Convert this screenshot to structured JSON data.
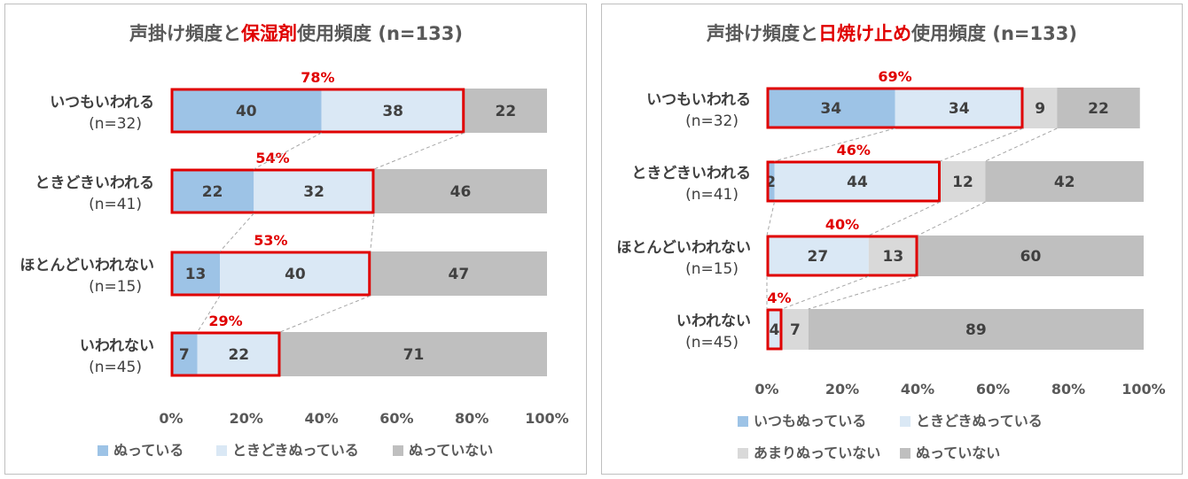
{
  "colors": {
    "always": "#9dc3e6",
    "sometimes": "#dae8f5",
    "rarely": "#d9d9d9",
    "not": "#bfbfbf",
    "highlight": "#e00000",
    "connector": "#a6a6a6"
  },
  "chart_data": [
    {
      "type": "bar",
      "orientation": "horizontal",
      "stacked": true,
      "title_parts": [
        "声掛け頻度と",
        "保湿剤",
        "使用頻度 (n=133)"
      ],
      "title_highlight_index": 1,
      "categories": [
        "いつもいわれる",
        "ときどきいわれる",
        "ほとんどいわれない",
        "いわれない"
      ],
      "category_n": [
        "(n=32)",
        "(n=41)",
        "(n=15)",
        "(n=45)"
      ],
      "series": [
        {
          "name": "ぬっている",
          "color_key": "always",
          "values": [
            40,
            22,
            13,
            7
          ]
        },
        {
          "name": "ときどきぬっている",
          "color_key": "sometimes",
          "values": [
            38,
            32,
            40,
            22
          ]
        },
        {
          "name": "ぬっていない",
          "color_key": "not",
          "values": [
            22,
            46,
            47,
            71
          ]
        }
      ],
      "highlight_totals": [
        "78%",
        "54%",
        "53%",
        "29%"
      ],
      "highlight_series_count": 2,
      "x_ticks": [
        "0%",
        "20%",
        "40%",
        "60%",
        "80%",
        "100%"
      ],
      "xlim": [
        0,
        100
      ],
      "legend_position": "bottom"
    },
    {
      "type": "bar",
      "orientation": "horizontal",
      "stacked": true,
      "title_parts": [
        "声掛け頻度と",
        "日焼け止め",
        "使用頻度 (n=133)"
      ],
      "title_highlight_index": 1,
      "categories": [
        "いつもいわれる",
        "ときどきいわれる",
        "ほとんどいわれない",
        "いわれない"
      ],
      "category_n": [
        "(n=32)",
        "(n=41)",
        "(n=15)",
        "(n=45)"
      ],
      "series": [
        {
          "name": "いつもぬっている",
          "color_key": "always",
          "values": [
            34,
            2,
            0,
            0
          ]
        },
        {
          "name": "ときどきぬっている",
          "color_key": "sometimes",
          "values": [
            34,
            44,
            27,
            4
          ]
        },
        {
          "name": "あまりぬっていない",
          "color_key": "rarely",
          "values": [
            9,
            12,
            13,
            7
          ]
        },
        {
          "name": "ぬっていない",
          "color_key": "not",
          "values": [
            22,
            42,
            60,
            89
          ]
        }
      ],
      "highlight_totals": [
        "69%",
        "46%",
        "40%",
        "4%"
      ],
      "highlight_series_count": [
        2,
        2,
        3,
        2
      ],
      "x_ticks": [
        "0%",
        "20%",
        "40%",
        "60%",
        "80%",
        "100%"
      ],
      "xlim": [
        0,
        100
      ],
      "legend_position": "bottom"
    }
  ]
}
